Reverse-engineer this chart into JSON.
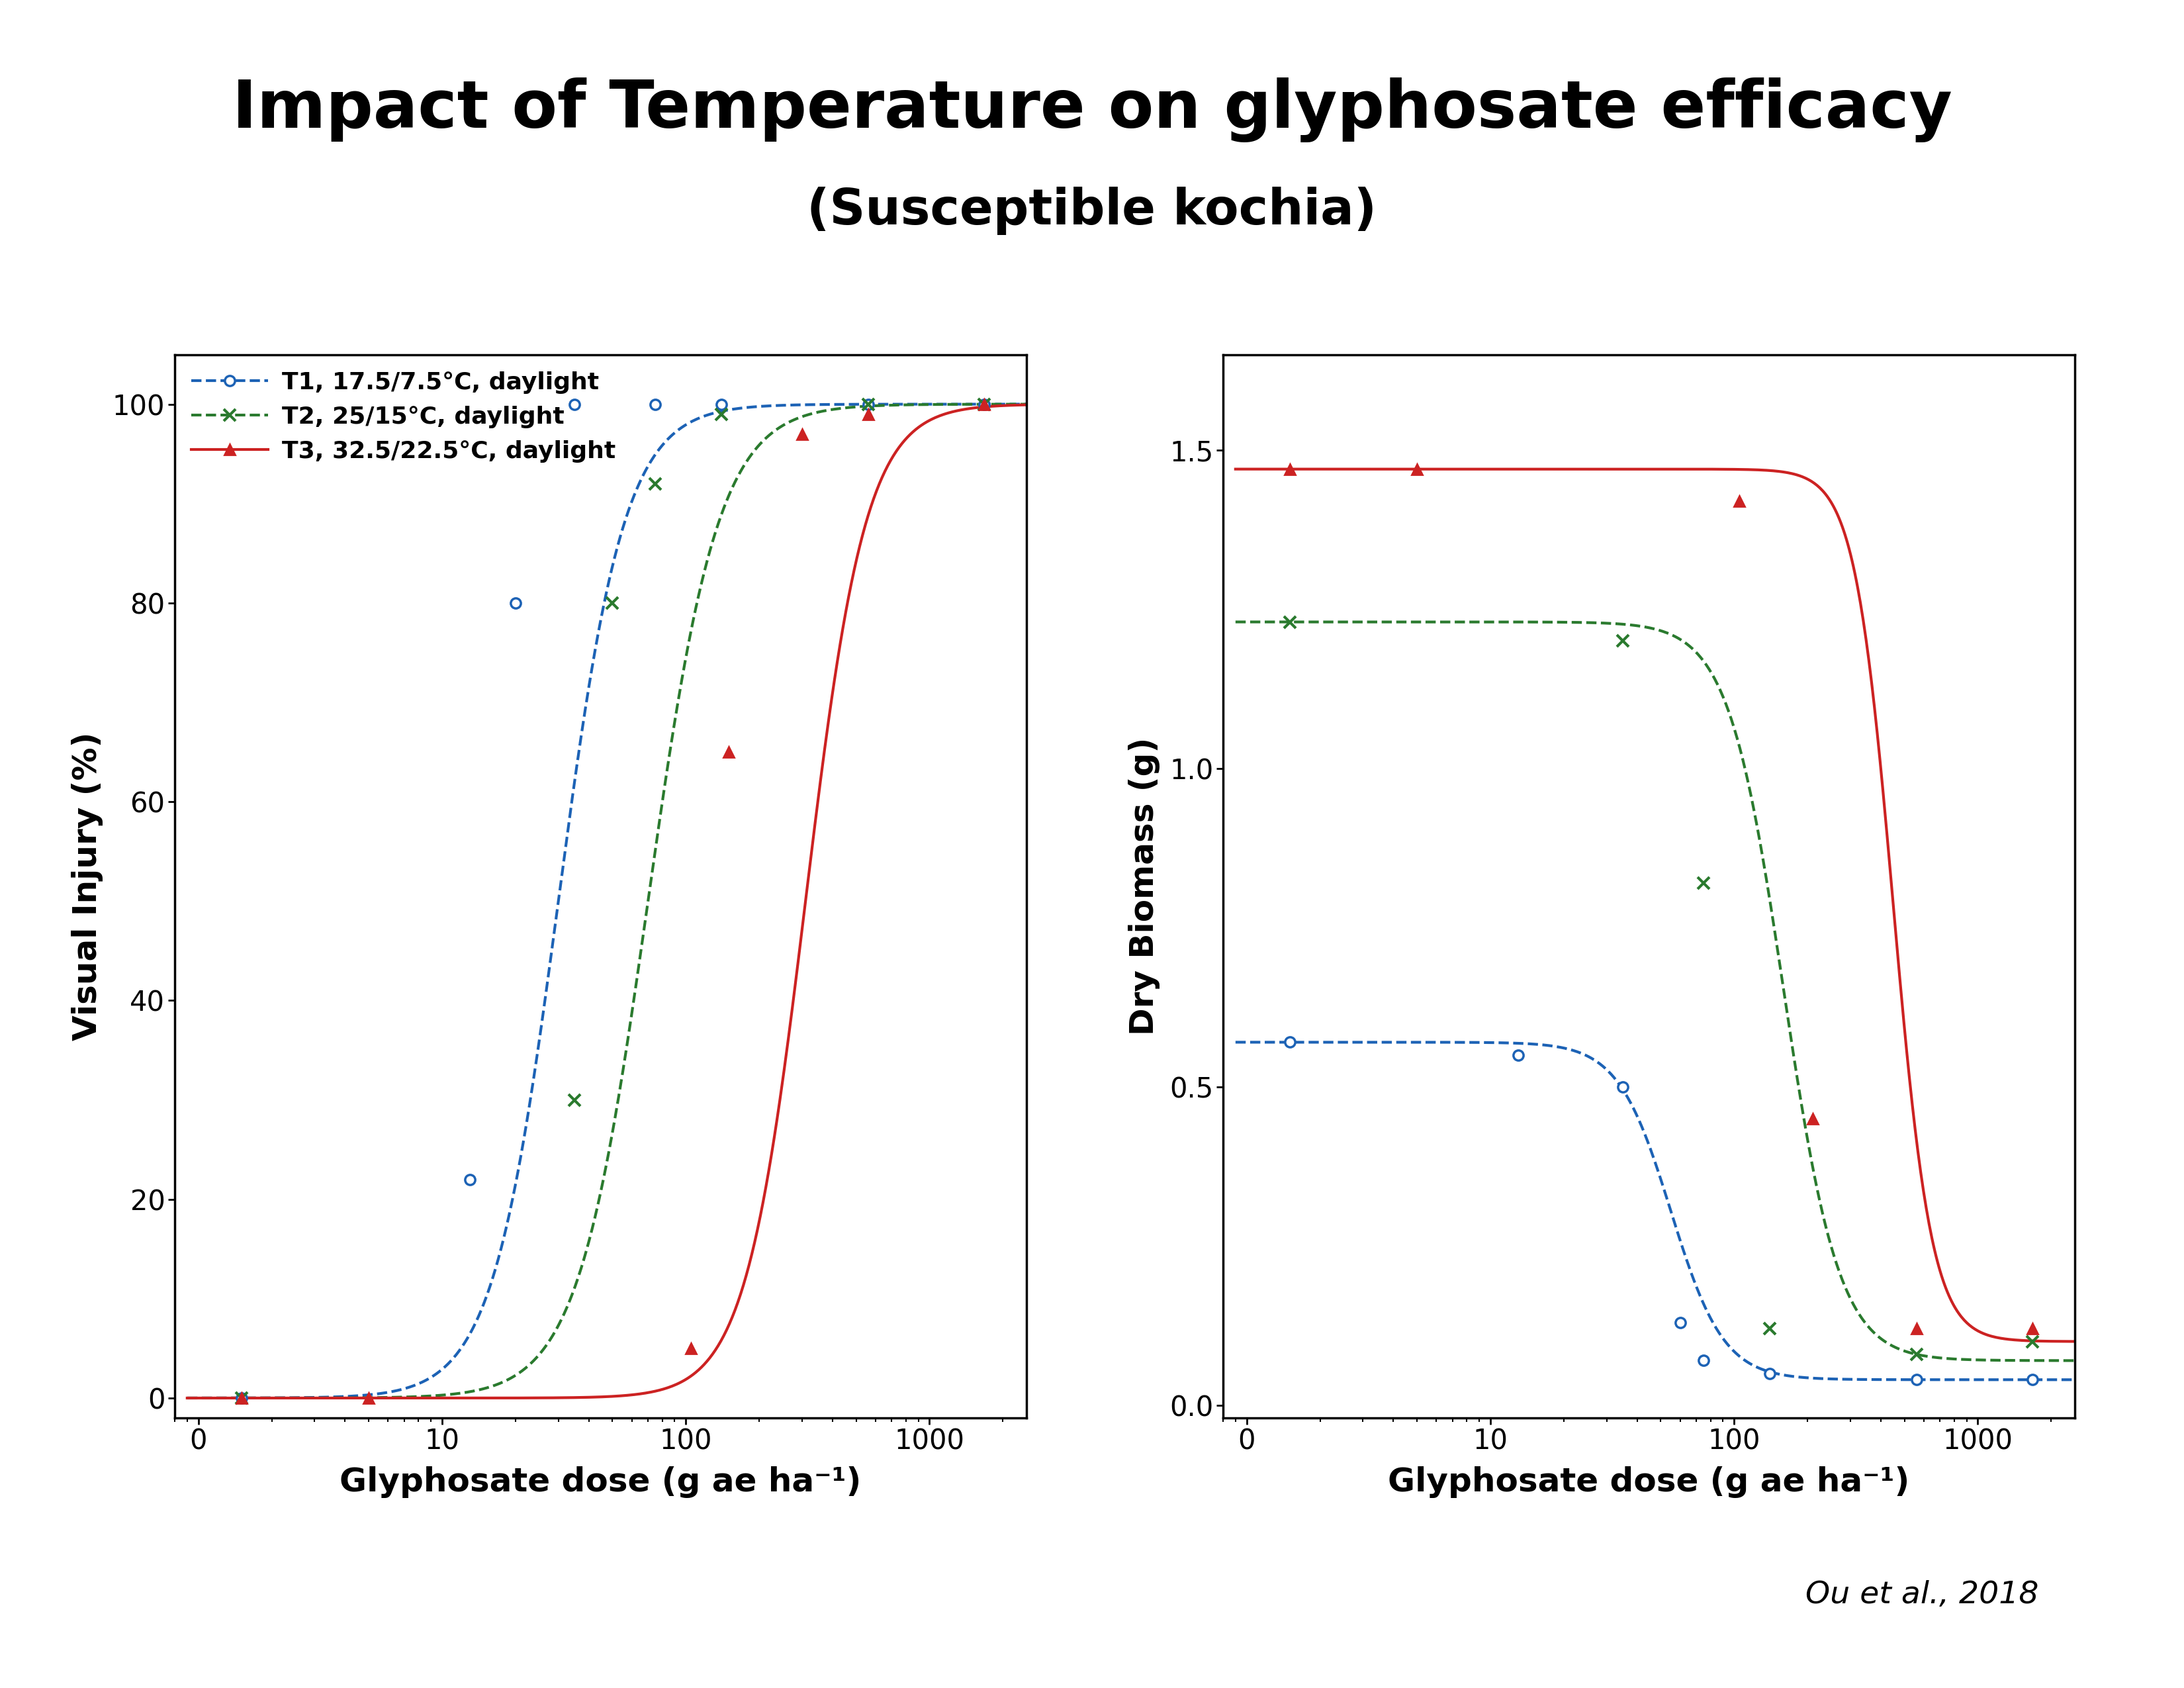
{
  "title": "Impact of Temperature on glyphosate efficacy",
  "subtitle": "(Susceptible kochia)",
  "xlabel": "Glyphosate dose (g ae ha⁻¹)",
  "ylabel_left": "Visual Injury (%)",
  "ylabel_right": "Dry Biomass (g)",
  "citation": "Ou et al., 2018",
  "background_color": "#ffffff",
  "treatments": [
    {
      "name": "T1, 17.5/7.5°C, daylight",
      "color": "#1c62b5",
      "linestyle": "--",
      "marker": "o",
      "linewidth": 3.0,
      "markersize": 11,
      "markerfacecolor": "white",
      "markeredgewidth": 2.5
    },
    {
      "name": "T2, 25/15°C, daylight",
      "color": "#2a7a2e",
      "linestyle": "--",
      "marker": "x",
      "linewidth": 3.0,
      "markersize": 13,
      "markerfacecolor": "#2a7a2e",
      "markeredgewidth": 3.0
    },
    {
      "name": "T3, 32.5/22.5°C, daylight",
      "color": "#cc2222",
      "linestyle": "-",
      "marker": "^",
      "linewidth": 3.0,
      "markersize": 12,
      "markerfacecolor": "#cc2222",
      "markeredgewidth": 2.0
    }
  ],
  "left_plot": {
    "ylim": [
      -2,
      105
    ],
    "yticks": [
      0,
      20,
      40,
      60,
      80,
      100
    ],
    "T1_ed50": 30,
    "T1_b": 3.2,
    "T2_ed50": 70,
    "T2_b": 3.0,
    "T3_ed50": 310,
    "T3_b": 3.5,
    "T1_points_x": [
      1.5,
      13,
      20,
      35,
      75,
      140,
      560,
      1680
    ],
    "T1_points_y": [
      0,
      22,
      80,
      100,
      100,
      100,
      100,
      100
    ],
    "T2_points_x": [
      1.5,
      35,
      50,
      75,
      140,
      560,
      1680
    ],
    "T2_points_y": [
      0,
      30,
      80,
      92,
      99,
      100,
      100
    ],
    "T3_points_x": [
      1.5,
      5,
      105,
      150,
      300,
      560,
      1680
    ],
    "T3_points_y": [
      0,
      0,
      5,
      65,
      97,
      99,
      100
    ]
  },
  "right_plot": {
    "ylim": [
      -0.02,
      1.65
    ],
    "yticks": [
      0.0,
      0.5,
      1.0,
      1.5
    ],
    "T1_upper": 0.57,
    "T1_lower": 0.04,
    "T1_ed50": 55,
    "T1_b": 4.0,
    "T2_upper": 1.23,
    "T2_lower": 0.07,
    "T2_ed50": 160,
    "T2_b": 3.8,
    "T3_upper": 1.47,
    "T3_lower": 0.1,
    "T3_ed50": 450,
    "T3_b": 5.5,
    "T1_points_x": [
      1.5,
      13,
      35,
      60,
      75,
      140,
      560,
      1680
    ],
    "T1_points_y": [
      0.57,
      0.55,
      0.5,
      0.13,
      0.07,
      0.05,
      0.04,
      0.04
    ],
    "T2_points_x": [
      1.5,
      35,
      75,
      140,
      560,
      1680
    ],
    "T2_points_y": [
      1.23,
      1.2,
      0.82,
      0.12,
      0.08,
      0.1
    ],
    "T3_points_x": [
      1.5,
      5,
      105,
      210,
      560,
      1680
    ],
    "T3_points_y": [
      1.47,
      1.47,
      1.42,
      0.45,
      0.12,
      0.12
    ]
  },
  "xlim": [
    0.8,
    2500
  ],
  "xticks": [
    1,
    10,
    100,
    1000
  ],
  "xticklabels": [
    "0",
    "10",
    "100",
    "1000"
  ],
  "title_fontsize": 72,
  "subtitle_fontsize": 54,
  "axis_label_fontsize": 36,
  "tick_fontsize": 30,
  "legend_fontsize": 26,
  "citation_fontsize": 34
}
